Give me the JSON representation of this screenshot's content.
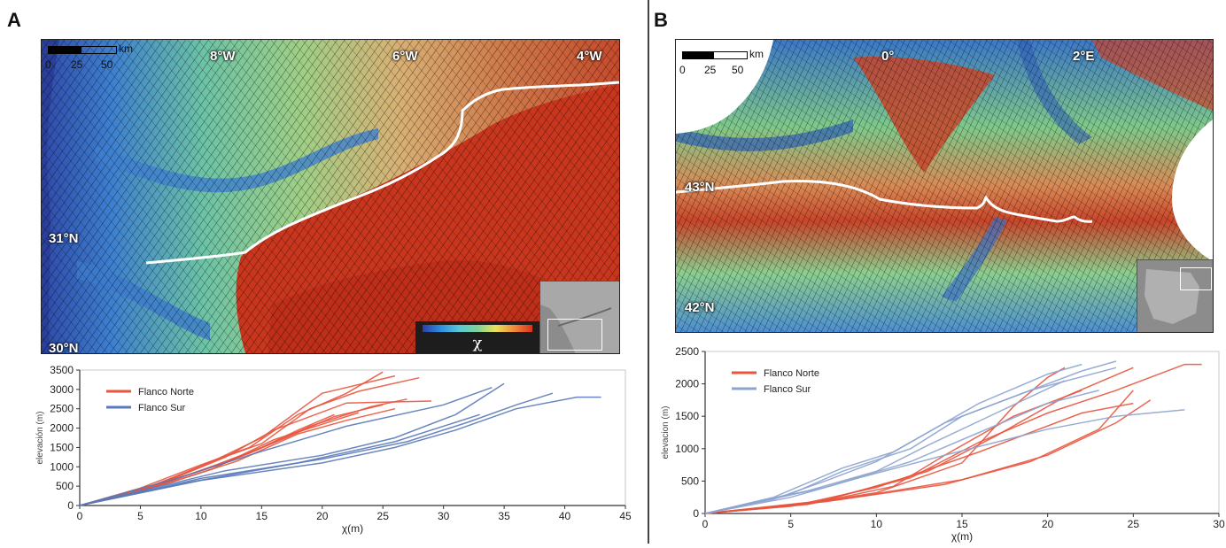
{
  "panels": [
    {
      "letter": "A",
      "map": {
        "scale": {
          "ticks": [
            "0",
            "25",
            "50"
          ],
          "unit": "km"
        },
        "lon_labels": [
          "8°W",
          "6°W",
          "4°W"
        ],
        "lat_labels": [
          "31°N",
          "30°N"
        ],
        "colorbar_symbol": "χ"
      },
      "chart_data": {
        "type": "line",
        "title": "",
        "xlabel": "χ(m)",
        "ylabel": "elevación (m)",
        "xlim": [
          0,
          45
        ],
        "ylim": [
          0,
          3500
        ],
        "xticks": [
          0,
          5,
          10,
          15,
          20,
          25,
          30,
          35,
          40,
          45
        ],
        "yticks": [
          0,
          500,
          1000,
          1500,
          2000,
          2500,
          3000,
          3500
        ],
        "legend_position": "top-left",
        "series": [
          {
            "name": "Flanco Norte",
            "color": "#e8553e",
            "lines": [
              [
                [
                  0,
                  0
                ],
                [
                  5,
                  450
                ],
                [
                  10,
                  1050
                ],
                [
                  14,
                  1500
                ],
                [
                  18,
                  2350
                ],
                [
                  22,
                  2900
                ],
                [
                  25,
                  3450
                ]
              ],
              [
                [
                  0,
                  0
                ],
                [
                  6,
                  500
                ],
                [
                  11,
                  1150
                ],
                [
                  15,
                  1600
                ],
                [
                  19,
                  2500
                ],
                [
                  23,
                  2950
                ],
                [
                  28,
                  3300
                ]
              ],
              [
                [
                  0,
                  0
                ],
                [
                  5,
                  400
                ],
                [
                  10,
                  1000
                ],
                [
                  15,
                  1750
                ],
                [
                  20,
                  2900
                ],
                [
                  26,
                  3350
                ]
              ],
              [
                [
                  0,
                  0
                ],
                [
                  6,
                  480
                ],
                [
                  12,
                  1250
                ],
                [
                  16,
                  1950
                ],
                [
                  22,
                  2650
                ],
                [
                  29,
                  2700
                ]
              ],
              [
                [
                  0,
                  0
                ],
                [
                  5,
                  350
                ],
                [
                  9,
                  800
                ],
                [
                  14,
                  1350
                ],
                [
                  19,
                  2050
                ],
                [
                  24,
                  2550
                ],
                [
                  27,
                  2750
                ]
              ],
              [
                [
                  0,
                  0
                ],
                [
                  7,
                  600
                ],
                [
                  12,
                  1100
                ],
                [
                  17,
                  1750
                ],
                [
                  21,
                  2300
                ],
                [
                  25,
                  2600
                ]
              ],
              [
                [
                  0,
                  0
                ],
                [
                  8,
                  650
                ],
                [
                  13,
                  1150
                ],
                [
                  18,
                  1850
                ],
                [
                  22,
                  2200
                ],
                [
                  26,
                  2500
                ]
              ],
              [
                [
                  0,
                  0
                ],
                [
                  5,
                  420
                ],
                [
                  10,
                  900
                ],
                [
                  15,
                  1500
                ],
                [
                  18,
                  1950
                ],
                [
                  21,
                  2350
                ]
              ],
              [
                [
                  0,
                  0
                ],
                [
                  7,
                  550
                ],
                [
                  11,
                  950
                ],
                [
                  16,
                  1700
                ],
                [
                  20,
                  2100
                ],
                [
                  23,
                  2400
                ]
              ]
            ]
          },
          {
            "name": "Flanco Sur",
            "color": "#5a79b8",
            "lines": [
              [
                [
                  0,
                  0
                ],
                [
                  10,
                  650
                ],
                [
                  20,
                  1100
                ],
                [
                  26,
                  1500
                ],
                [
                  31,
                  1950
                ],
                [
                  36,
                  2500
                ],
                [
                  41,
                  2800
                ],
                [
                  43,
                  2800
                ]
              ],
              [
                [
                  0,
                  0
                ],
                [
                  10,
                  700
                ],
                [
                  20,
                  1200
                ],
                [
                  27,
                  1650
                ],
                [
                  32,
                  2150
                ],
                [
                  36,
                  2600
                ],
                [
                  39,
                  2900
                ]
              ],
              [
                [
                  0,
                  0
                ],
                [
                  12,
                  900
                ],
                [
                  20,
                  1300
                ],
                [
                  26,
                  1750
                ],
                [
                  31,
                  2350
                ],
                [
                  35,
                  3150
                ]
              ],
              [
                [
                  0,
                  0
                ],
                [
                  8,
                  700
                ],
                [
                  15,
                  1400
                ],
                [
                  22,
                  2050
                ],
                [
                  30,
                  2600
                ],
                [
                  34,
                  3050
                ]
              ],
              [
                [
                  0,
                  0
                ],
                [
                  9,
                  600
                ],
                [
                  18,
                  1100
                ],
                [
                  26,
                  1650
                ],
                [
                  33,
                  2350
                ]
              ]
            ]
          }
        ]
      }
    },
    {
      "letter": "B",
      "map": {
        "scale": {
          "ticks": [
            "0",
            "25",
            "50"
          ],
          "unit": "km"
        },
        "lon_labels": [
          "0°",
          "2°E"
        ],
        "lat_labels": [
          "43°N",
          "42°N"
        ]
      },
      "chart_data": {
        "type": "line",
        "title": "",
        "xlabel": "χ(m)",
        "ylabel": "elevacion (m)",
        "xlim": [
          0,
          30
        ],
        "ylim": [
          0,
          2500
        ],
        "xticks": [
          0,
          5,
          10,
          15,
          20,
          25,
          30
        ],
        "yticks": [
          0,
          500,
          1000,
          1500,
          2000,
          2500
        ],
        "legend_position": "top-left",
        "series": [
          {
            "name": "Flanco Norte",
            "color": "#e8553e",
            "lines": [
              [
                [
                  0,
                  0
                ],
                [
                  5,
                  120
                ],
                [
                  10,
                  320
                ],
                [
                  15,
                  780
                ],
                [
                  18,
                  1650
                ],
                [
                  20,
                  2100
                ],
                [
                  21,
                  2250
                ]
              ],
              [
                [
                  0,
                  0
                ],
                [
                  6,
                  150
                ],
                [
                  12,
                  550
                ],
                [
                  16,
                  1100
                ],
                [
                  20,
                  1550
                ],
                [
                  24,
                  1900
                ],
                [
                  28,
                  2300
                ],
                [
                  29,
                  2300
                ]
              ],
              [
                [
                  0,
                  0
                ],
                [
                  7,
                  200
                ],
                [
                  13,
                  650
                ],
                [
                  17,
                  1200
                ],
                [
                  21,
                  1800
                ],
                [
                  25,
                  2250
                ]
              ],
              [
                [
                  0,
                  0
                ],
                [
                  6,
                  140
                ],
                [
                  11,
                  420
                ],
                [
                  14,
                  900
                ],
                [
                  18,
                  1500
                ],
                [
                  22,
                  1900
                ]
              ],
              [
                [
                  0,
                  0
                ],
                [
                  7,
                  180
                ],
                [
                  14,
                  450
                ],
                [
                  19,
                  800
                ],
                [
                  23,
                  1300
                ],
                [
                  25,
                  1900
                ]
              ],
              [
                [
                  0,
                  0
                ],
                [
                  8,
                  220
                ],
                [
                  15,
                  520
                ],
                [
                  20,
                  900
                ],
                [
                  24,
                  1400
                ],
                [
                  26,
                  1750
                ]
              ],
              [
                [
                  0,
                  0
                ],
                [
                  5,
                  110
                ],
                [
                  10,
                  400
                ],
                [
                  16,
                  950
                ],
                [
                  22,
                  1550
                ],
                [
                  25,
                  1700
                ]
              ]
            ]
          },
          {
            "name": "Flanco Sur",
            "color": "#8da4cf",
            "lines": [
              [
                [
                  0,
                  0
                ],
                [
                  4,
                  220
                ],
                [
                  7,
                  500
                ],
                [
                  10,
                  800
                ],
                [
                  13,
                  1250
                ],
                [
                  16,
                  1700
                ],
                [
                  20,
                  2150
                ],
                [
                  22,
                  2300
                ]
              ],
              [
                [
                  0,
                  0
                ],
                [
                  4,
                  250
                ],
                [
                  8,
                  700
                ],
                [
                  11,
                  950
                ],
                [
                  14,
                  1400
                ],
                [
                  18,
                  1800
                ],
                [
                  22,
                  2200
                ],
                [
                  24,
                  2350
                ]
              ],
              [
                [
                  0,
                  0
                ],
                [
                  5,
                  300
                ],
                [
                  8,
                  650
                ],
                [
                  12,
                  1000
                ],
                [
                  15,
                  1500
                ],
                [
                  19,
                  1900
                ],
                [
                  24,
                  2250
                ]
              ],
              [
                [
                  0,
                  0
                ],
                [
                  6,
                  350
                ],
                [
                  10,
                  650
                ],
                [
                  13,
                  1050
                ],
                [
                  17,
                  1550
                ],
                [
                  21,
                  2050
                ]
              ],
              [
                [
                  0,
                  0
                ],
                [
                  5,
                  250
                ],
                [
                  9,
                  550
                ],
                [
                  14,
                  900
                ],
                [
                  20,
                  1300
                ],
                [
                  24,
                  1500
                ],
                [
                  28,
                  1600
                ]
              ],
              [
                [
                  0,
                  0
                ],
                [
                  7,
                  400
                ],
                [
                  12,
                  800
                ],
                [
                  16,
                  1250
                ],
                [
                  20,
                  1700
                ],
                [
                  23,
                  1900
                ]
              ]
            ]
          }
        ]
      }
    }
  ]
}
